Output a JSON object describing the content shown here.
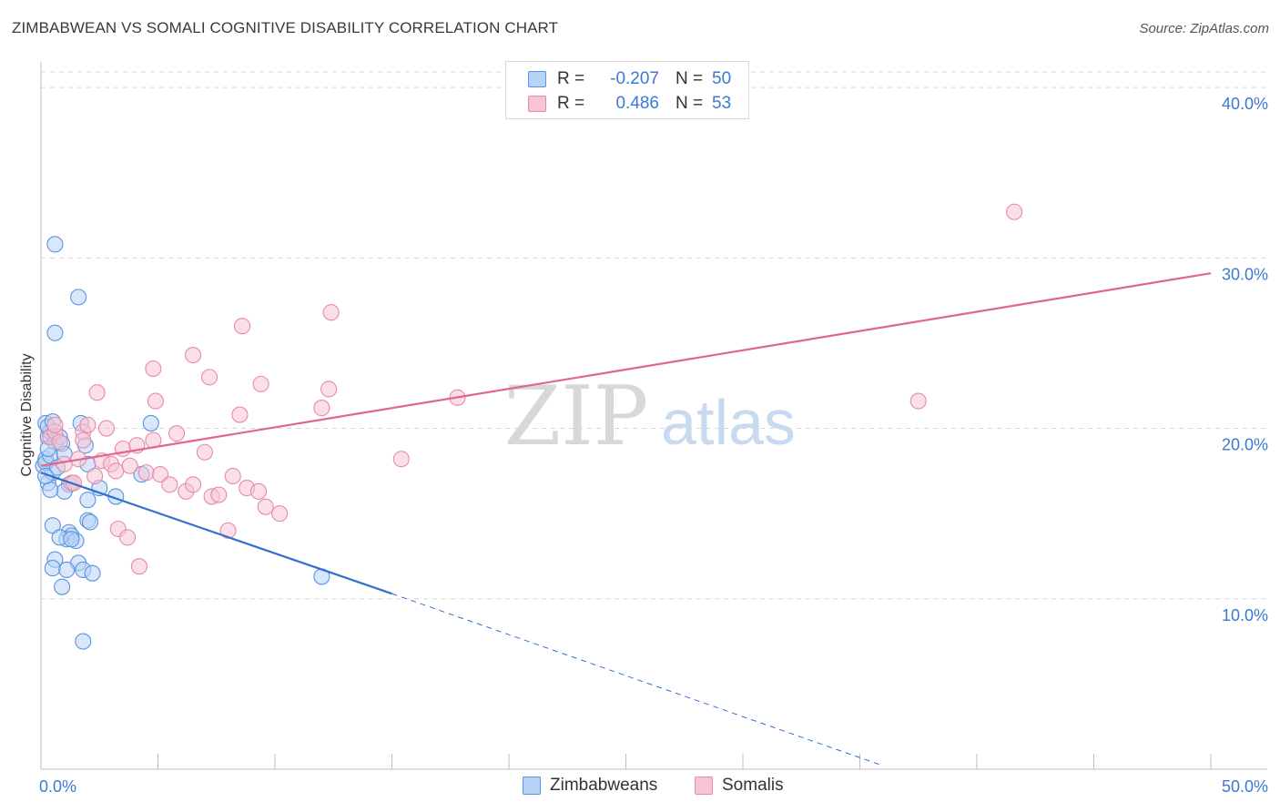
{
  "header": {
    "title": "ZIMBABWEAN VS SOMALI COGNITIVE DISABILITY CORRELATION CHART",
    "source": "Source: ZipAtlas.com"
  },
  "legend": {
    "rows": [
      {
        "r_label": "R =",
        "r_value": "-0.207",
        "n_label": "N =",
        "n_value": "50"
      },
      {
        "r_label": "R =",
        "r_value": "0.486",
        "n_label": "N =",
        "n_value": "53"
      }
    ]
  },
  "watermark": {
    "zip": "ZIP",
    "atlas": "atlas"
  },
  "colors": {
    "blue_fill": "#b8d3f5",
    "blue_stroke": "#5b93df",
    "blue_line": "#2f6fd0",
    "pink_fill": "#f7c4d3",
    "pink_stroke": "#e68aa8",
    "pink_line": "#e0668e",
    "tick_label": "#3b79d4"
  },
  "chart_data": {
    "type": "scatter",
    "title": "ZIMBABWEAN VS SOMALI COGNITIVE DISABILITY CORRELATION CHART",
    "xlabel": "",
    "ylabel": "Cognitive Disability",
    "xlim": [
      0,
      50
    ],
    "ylim": [
      0,
      41.5
    ],
    "x_tick_labels": [
      "0.0%",
      "50.0%"
    ],
    "y_ticks": [
      10,
      20,
      30,
      40
    ],
    "y_tick_labels": [
      "10.0%",
      "20.0%",
      "30.0%",
      "40.0%"
    ],
    "grid": true,
    "series": [
      {
        "name": "Zimbabweans",
        "r": -0.207,
        "n": 50,
        "points": [
          [
            0.1,
            17.8
          ],
          [
            0.2,
            18.2
          ],
          [
            0.3,
            19.5
          ],
          [
            0.2,
            20.3
          ],
          [
            0.4,
            19.8
          ],
          [
            0.3,
            16.8
          ],
          [
            0.5,
            17.4
          ],
          [
            0.2,
            18.0
          ],
          [
            0.6,
            19.2
          ],
          [
            0.8,
            19.5
          ],
          [
            0.4,
            18.4
          ],
          [
            0.3,
            20.1
          ],
          [
            0.5,
            20.4
          ],
          [
            0.9,
            19.1
          ],
          [
            1.0,
            18.5
          ],
          [
            0.7,
            17.7
          ],
          [
            1.2,
            16.7
          ],
          [
            1.0,
            16.3
          ],
          [
            0.4,
            16.4
          ],
          [
            0.2,
            17.2
          ],
          [
            2.0,
            17.9
          ],
          [
            1.7,
            20.3
          ],
          [
            1.9,
            19.0
          ],
          [
            0.5,
            14.3
          ],
          [
            1.2,
            13.9
          ],
          [
            1.3,
            13.7
          ],
          [
            1.1,
            13.5
          ],
          [
            1.5,
            13.4
          ],
          [
            0.8,
            13.6
          ],
          [
            1.3,
            13.5
          ],
          [
            2.0,
            15.8
          ],
          [
            2.0,
            14.6
          ],
          [
            2.1,
            14.5
          ],
          [
            0.6,
            12.3
          ],
          [
            0.5,
            11.8
          ],
          [
            1.6,
            12.1
          ],
          [
            1.1,
            11.7
          ],
          [
            1.8,
            11.7
          ],
          [
            0.9,
            10.7
          ],
          [
            2.2,
            11.5
          ],
          [
            3.2,
            16.0
          ],
          [
            4.3,
            17.3
          ],
          [
            4.7,
            20.3
          ],
          [
            0.6,
            30.8
          ],
          [
            1.6,
            27.7
          ],
          [
            0.6,
            25.6
          ],
          [
            2.5,
            16.5
          ],
          [
            1.8,
            7.5
          ],
          [
            12.0,
            11.3
          ],
          [
            0.3,
            18.8
          ]
        ],
        "trend": {
          "x": [
            0,
            15
          ],
          "y": [
            17.4,
            10.3
          ]
        },
        "trend_dashed": {
          "x": [
            15,
            36
          ],
          "y": [
            10.3,
            0.2
          ]
        }
      },
      {
        "name": "Somalis",
        "r": 0.486,
        "n": 53,
        "points": [
          [
            0.4,
            19.5
          ],
          [
            0.6,
            19.8
          ],
          [
            0.8,
            19.2
          ],
          [
            1.0,
            17.9
          ],
          [
            1.3,
            16.8
          ],
          [
            1.6,
            18.2
          ],
          [
            1.8,
            19.8
          ],
          [
            2.0,
            20.2
          ],
          [
            2.3,
            17.2
          ],
          [
            2.6,
            18.1
          ],
          [
            2.8,
            20.0
          ],
          [
            3.0,
            17.9
          ],
          [
            3.2,
            17.5
          ],
          [
            3.5,
            18.8
          ],
          [
            3.8,
            17.8
          ],
          [
            4.1,
            19.0
          ],
          [
            4.5,
            17.4
          ],
          [
            4.8,
            19.3
          ],
          [
            5.1,
            17.3
          ],
          [
            5.5,
            16.7
          ],
          [
            5.8,
            19.7
          ],
          [
            6.2,
            16.3
          ],
          [
            6.5,
            16.7
          ],
          [
            7.0,
            18.6
          ],
          [
            7.3,
            16.0
          ],
          [
            7.6,
            16.1
          ],
          [
            8.0,
            14.0
          ],
          [
            8.2,
            17.2
          ],
          [
            8.5,
            20.8
          ],
          [
            8.8,
            16.5
          ],
          [
            9.3,
            16.3
          ],
          [
            9.6,
            15.4
          ],
          [
            10.2,
            15.0
          ],
          [
            4.9,
            21.6
          ],
          [
            4.8,
            23.5
          ],
          [
            6.5,
            24.3
          ],
          [
            7.2,
            23.0
          ],
          [
            8.6,
            26.0
          ],
          [
            9.4,
            22.6
          ],
          [
            12.4,
            26.8
          ],
          [
            12.0,
            21.2
          ],
          [
            12.3,
            22.3
          ],
          [
            2.4,
            22.1
          ],
          [
            3.3,
            14.1
          ],
          [
            3.7,
            13.6
          ],
          [
            4.2,
            11.9
          ],
          [
            17.8,
            21.8
          ],
          [
            15.4,
            18.2
          ],
          [
            37.5,
            21.6
          ],
          [
            41.6,
            32.7
          ],
          [
            1.8,
            19.3
          ],
          [
            0.6,
            20.2
          ],
          [
            1.4,
            16.8
          ]
        ],
        "trend": {
          "x": [
            0,
            50
          ],
          "y": [
            17.8,
            29.1
          ]
        }
      }
    ]
  },
  "bottom_legend": [
    "Zimbabweans",
    "Somalis"
  ]
}
